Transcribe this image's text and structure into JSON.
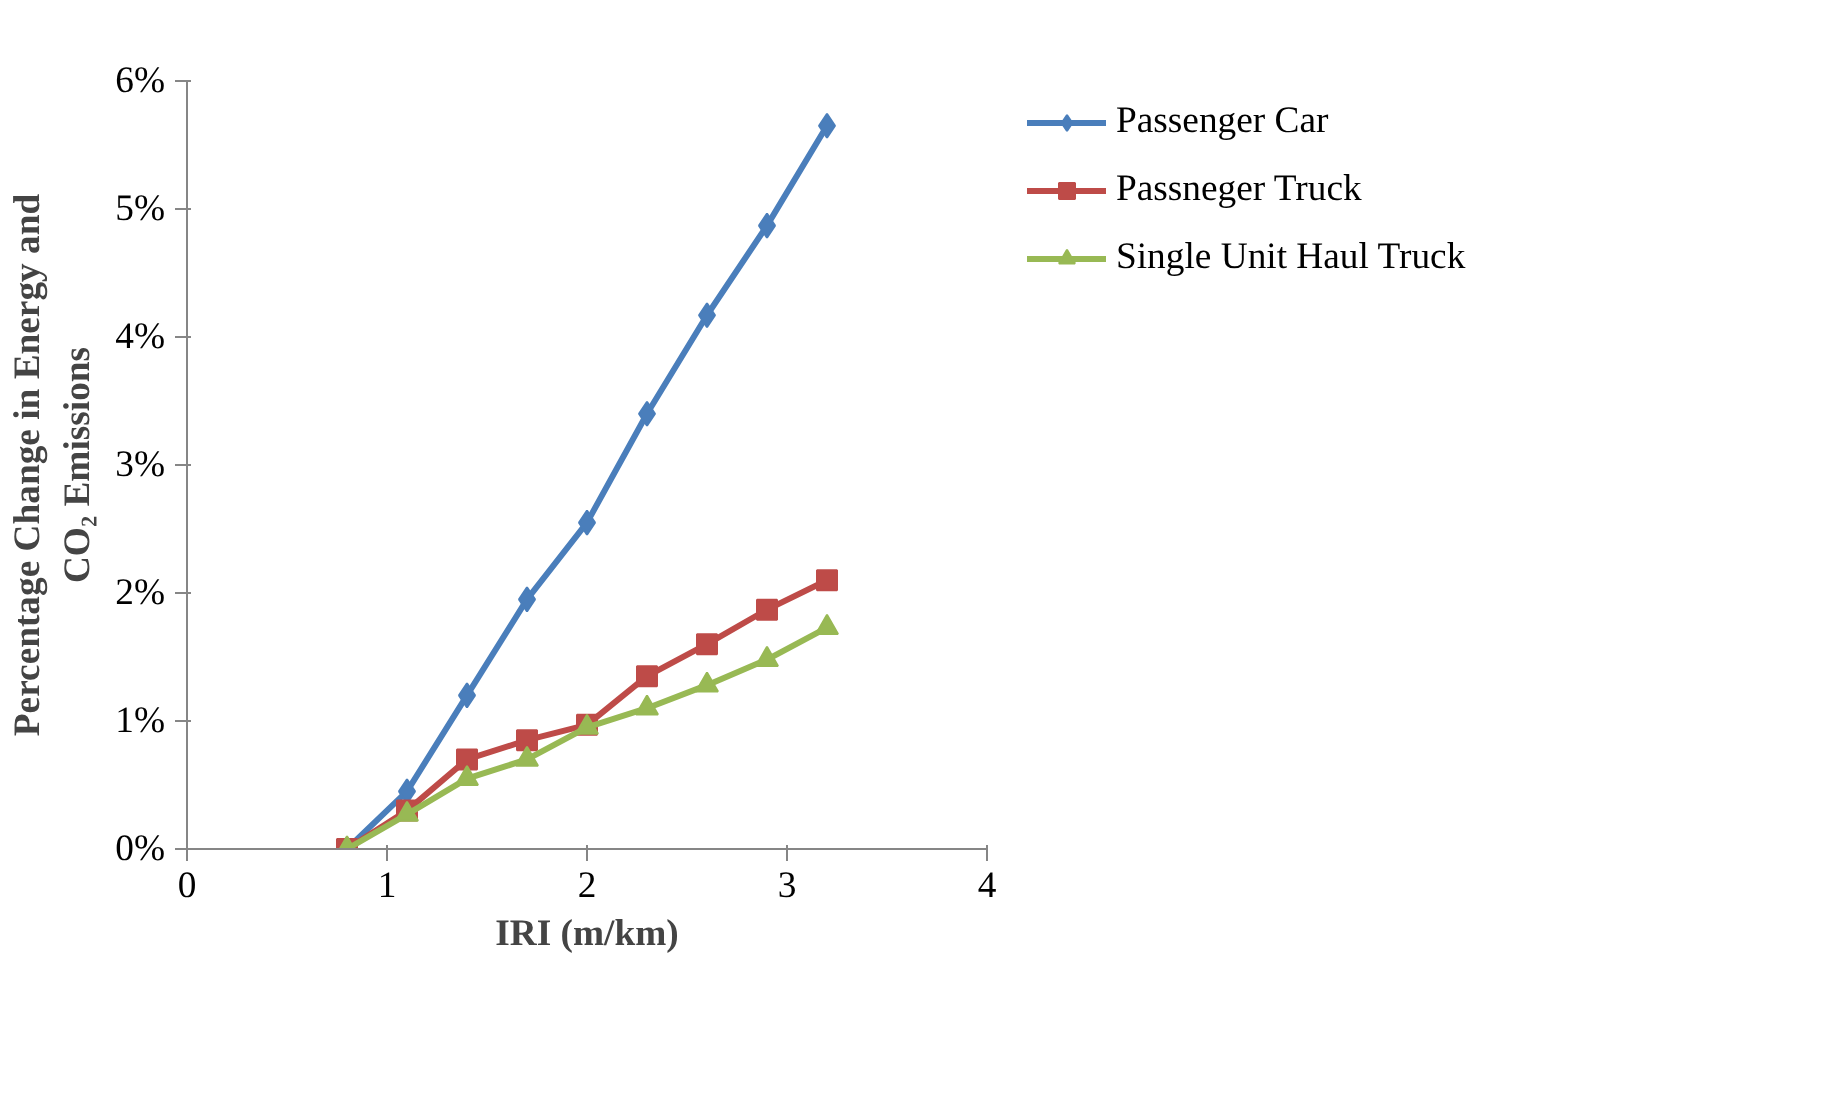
{
  "chart_data": {
    "type": "line",
    "xlabel": "IRI (m/km)",
    "ylabel": "Percentage Change in Energy and\nCO₂ Emissions",
    "x": [
      0.8,
      1.1,
      1.4,
      1.7,
      2.0,
      2.3,
      2.6,
      2.9,
      3.2
    ],
    "series": [
      {
        "name": "Passenger Car",
        "color": "#4a7ebb",
        "marker": "diamond",
        "values": [
          0,
          0.45,
          1.2,
          1.95,
          2.55,
          3.4,
          4.17,
          4.87,
          5.65
        ]
      },
      {
        "name": "Passneger Truck",
        "color": "#be4b48",
        "marker": "square",
        "values": [
          0,
          0.3,
          0.7,
          0.85,
          0.97,
          1.35,
          1.6,
          1.87,
          2.1
        ]
      },
      {
        "name": "Single Unit Haul Truck",
        "color": "#98b954",
        "marker": "triangle",
        "values": [
          0,
          0.27,
          0.55,
          0.7,
          0.95,
          1.1,
          1.28,
          1.48,
          1.73
        ]
      }
    ],
    "xlim": [
      0,
      4
    ],
    "xticks": [
      0,
      1,
      2,
      3,
      4
    ],
    "ylim": [
      0,
      6
    ],
    "yticks": [
      {
        "value": 0,
        "label": "0%"
      },
      {
        "value": 1,
        "label": "1%"
      },
      {
        "value": 2,
        "label": "2%"
      },
      {
        "value": 3,
        "label": "3%"
      },
      {
        "value": 4,
        "label": "4%"
      },
      {
        "value": 5,
        "label": "5%"
      },
      {
        "value": 6,
        "label": "6%"
      }
    ],
    "grid": false,
    "legend": "right",
    "line_style": "solid"
  }
}
